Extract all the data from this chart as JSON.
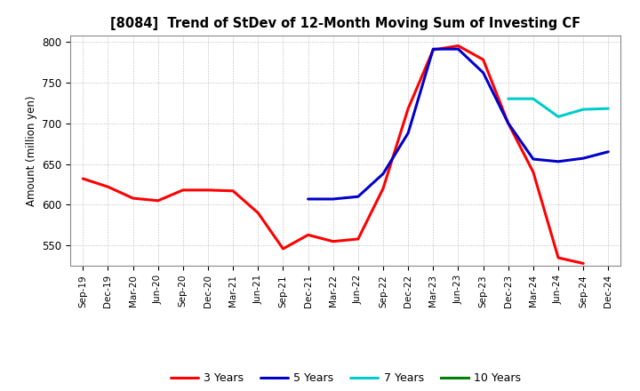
{
  "title": "[8084]  Trend of StDev of 12-Month Moving Sum of Investing CF",
  "ylabel": "Amount (million yen)",
  "ylim": [
    525,
    808
  ],
  "yticks": [
    550,
    600,
    650,
    700,
    750,
    800
  ],
  "background_color": "#ffffff",
  "grid_color": "#999999",
  "x_labels": [
    "Sep-19",
    "Dec-19",
    "Mar-20",
    "Jun-20",
    "Sep-20",
    "Dec-20",
    "Mar-21",
    "Jun-21",
    "Sep-21",
    "Dec-21",
    "Mar-22",
    "Jun-22",
    "Sep-22",
    "Dec-22",
    "Mar-23",
    "Jun-23",
    "Sep-23",
    "Dec-23",
    "Mar-24",
    "Jun-24",
    "Sep-24",
    "Dec-24"
  ],
  "series_3y": {
    "label": "3 Years",
    "color": "#ff0000",
    "data": [
      [
        "Sep-19",
        632
      ],
      [
        "Dec-19",
        622
      ],
      [
        "Mar-20",
        608
      ],
      [
        "Jun-20",
        605
      ],
      [
        "Sep-20",
        618
      ],
      [
        "Dec-20",
        618
      ],
      [
        "Mar-21",
        617
      ],
      [
        "Jun-21",
        590
      ],
      [
        "Sep-21",
        546
      ],
      [
        "Dec-21",
        563
      ],
      [
        "Mar-22",
        555
      ],
      [
        "Jun-22",
        558
      ],
      [
        "Sep-22",
        620
      ],
      [
        "Dec-22",
        718
      ],
      [
        "Mar-23",
        790
      ],
      [
        "Jun-23",
        795
      ],
      [
        "Sep-23",
        778
      ],
      [
        "Dec-23",
        700
      ],
      [
        "Mar-24",
        640
      ],
      [
        "Jun-24",
        535
      ],
      [
        "Sep-24",
        528
      ],
      [
        "Dec-24",
        null
      ]
    ]
  },
  "series_5y": {
    "label": "5 Years",
    "color": "#0000cc",
    "data": [
      [
        "Dec-21",
        607
      ],
      [
        "Mar-22",
        607
      ],
      [
        "Jun-22",
        610
      ],
      [
        "Sep-22",
        638
      ],
      [
        "Dec-22",
        688
      ],
      [
        "Mar-23",
        791
      ],
      [
        "Jun-23",
        791
      ],
      [
        "Sep-23",
        762
      ],
      [
        "Dec-23",
        700
      ],
      [
        "Mar-24",
        656
      ],
      [
        "Jun-24",
        653
      ],
      [
        "Sep-24",
        657
      ],
      [
        "Dec-24",
        665
      ]
    ]
  },
  "series_7y": {
    "label": "7 Years",
    "color": "#00cccc",
    "data": [
      [
        "Dec-23",
        730
      ],
      [
        "Mar-24",
        730
      ],
      [
        "Jun-24",
        708
      ],
      [
        "Sep-24",
        717
      ],
      [
        "Dec-24",
        718
      ]
    ]
  },
  "series_10y": {
    "label": "10 Years",
    "color": "#008000",
    "data": []
  }
}
